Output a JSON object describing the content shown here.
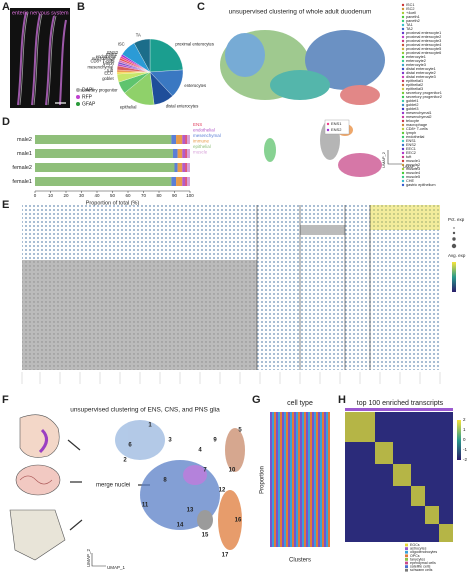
{
  "panel_labels": [
    "A",
    "B",
    "C",
    "D",
    "E",
    "F",
    "G",
    "H"
  ],
  "panel_a": {
    "title": "enteric nervous system",
    "legend": [
      "DAPI",
      "RFP",
      "GFAP"
    ]
  },
  "chart_data": [
    {
      "type": "pie",
      "categories": [
        "proximal enterocytes",
        "enterocytes",
        "distal enterocytes",
        "epithelial",
        "secretory progenitor",
        "goblet",
        "EEC",
        "tuft",
        "mesenchymal",
        "lymph",
        "CD8+ T-cells",
        "macrophage",
        "endothelial",
        "ENS1",
        "ENS2",
        "ISC",
        "TA"
      ],
      "values": [
        24,
        14,
        10,
        16,
        6,
        4,
        1,
        1,
        2,
        1,
        1,
        1,
        1,
        1,
        1,
        8,
        8
      ],
      "colors": [
        "#1b9e8f",
        "#3a78c2",
        "#1f4e9a",
        "#8fd16a",
        "#5fc46e",
        "#c8e66a",
        "#f2d23a",
        "#e98a3a",
        "#d95f5f",
        "#b04ac7",
        "#7a52c9",
        "#d16fb8",
        "#e35050",
        "#f03d8a",
        "#9d2fd6",
        "#2b9bd6",
        "#1c6d8a"
      ]
    },
    {
      "type": "bar",
      "orientation": "horizontal",
      "categories": [
        "male2",
        "male1",
        "female2",
        "female1"
      ],
      "series": [
        {
          "name": "ENS",
          "color": "#e0405f",
          "values": [
            1,
            1,
            1,
            1
          ]
        },
        {
          "name": "endothelial",
          "color": "#b35ac8",
          "values": [
            2,
            2,
            2,
            2
          ]
        },
        {
          "name": "mesenchymal",
          "color": "#5b7fd6",
          "values": [
            3,
            3,
            2,
            3
          ]
        },
        {
          "name": "immune",
          "color": "#e89b4a",
          "values": [
            4,
            3,
            3,
            4
          ]
        },
        {
          "name": "epithelial",
          "color": "#8fbf7a",
          "values": [
            88,
            89,
            90,
            88
          ]
        },
        {
          "name": "muscle",
          "color": "#d6a0d8",
          "values": [
            2,
            2,
            2,
            2
          ]
        }
      ],
      "xlim": [
        0,
        100
      ],
      "xticks": [
        0,
        10,
        20,
        30,
        40,
        50,
        60,
        70,
        80,
        90,
        100
      ],
      "x_label": "Proportion of total (%)"
    }
  ],
  "panel_c": {
    "title": "unsupervised clustering of whole adult duodenum",
    "legend": [
      "ISC1",
      "ISC2",
      "+4cell",
      "paneth1",
      "paneth2",
      "TA1",
      "TA2",
      "proximal enterocyte1",
      "proximal enterocyte2",
      "proximal enterocyte3",
      "proximal enterocyte4",
      "proximal enterocyte5",
      "proximal enterocyte6",
      "enterocyte1",
      "enterocyte2",
      "enterocyte3",
      "distal enterocyte1",
      "distal enterocyte2",
      "distal enterocyte3",
      "epithelial1",
      "epithelial2",
      "epithelial3",
      "secretory progenitor1",
      "secretory progenitor2",
      "goblet1",
      "goblet2",
      "goblet3",
      "mesenchymal1",
      "mesenchymal2",
      "telocyte",
      "macrophage",
      "CD8+ T-cells",
      "lymph",
      "endothelial",
      "ENS1",
      "ENS2",
      "EEC1",
      "EEC2",
      "tuft",
      "muscle1",
      "muscle2",
      "muscle3",
      "muscle4",
      "muscle5",
      "CHE",
      "gastric epithelium"
    ],
    "inset_legend": [
      "ENS1",
      "ENS2"
    ],
    "x_label": "UMAP_1",
    "y_label": "UMAP_2"
  },
  "panel_e": {
    "pct_label": "Pct. exp",
    "avg_label": "Avg. exp"
  },
  "panel_f": {
    "title": "unsupervised clustering of ENS, CNS, and PNS glia",
    "merge": "merge nuclei",
    "x_label": "UMAP_1",
    "y_label": "UMAP_2",
    "clusters": [
      "1",
      "2",
      "3",
      "4",
      "5",
      "6",
      "7",
      "8",
      "9",
      "10",
      "11",
      "12",
      "13",
      "14",
      "15",
      "16",
      "17"
    ]
  },
  "panel_g": {
    "title": "cell type",
    "y_label": "Proportion",
    "x_label": "Clusters"
  },
  "panel_h": {
    "title": "top 100 enriched transcripts",
    "legend": [
      "EGCs",
      "astrocytes",
      "oligodendrocytes",
      "OPCs",
      "tanycytes",
      "ependymal cells",
      "satellite cells",
      "schwann cells"
    ],
    "legend_colors": [
      "#e8d93a",
      "#9b59d0",
      "#3aa0d8",
      "#e07b3a",
      "#8bc34a",
      "#c94a8a",
      "#4a6fd0",
      "#7a7a7a"
    ],
    "colorbar_ticks": [
      "2",
      "1",
      "0",
      "-1",
      "-2"
    ]
  }
}
